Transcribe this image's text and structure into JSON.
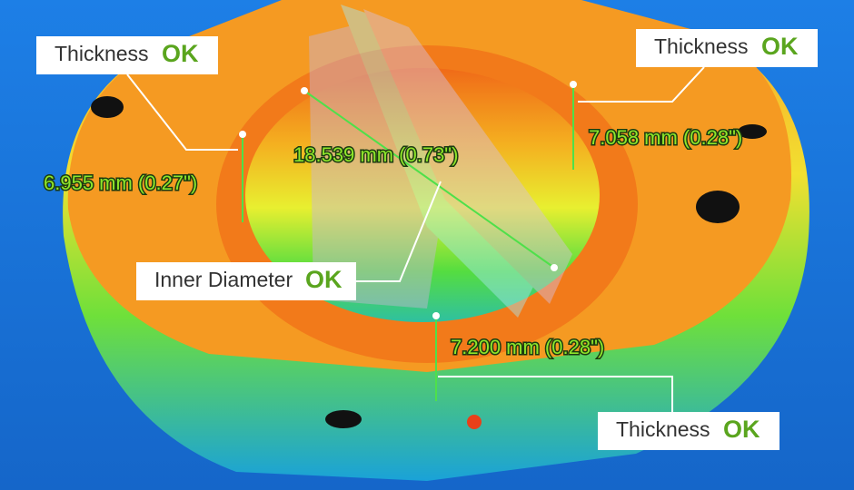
{
  "callouts": [
    {
      "label": "Thickness",
      "status": "OK"
    },
    {
      "label": "Thickness",
      "status": "OK"
    },
    {
      "label": "Inner Diameter",
      "status": "OK"
    },
    {
      "label": "Thickness",
      "status": "OK"
    }
  ],
  "measurements": [
    {
      "text": "6.955 mm (0.27\")"
    },
    {
      "text": "7.058 mm (0.28\")"
    },
    {
      "text": "18.539 mm (0.73\")"
    },
    {
      "text": "7.200 mm (0.28\")"
    }
  ]
}
